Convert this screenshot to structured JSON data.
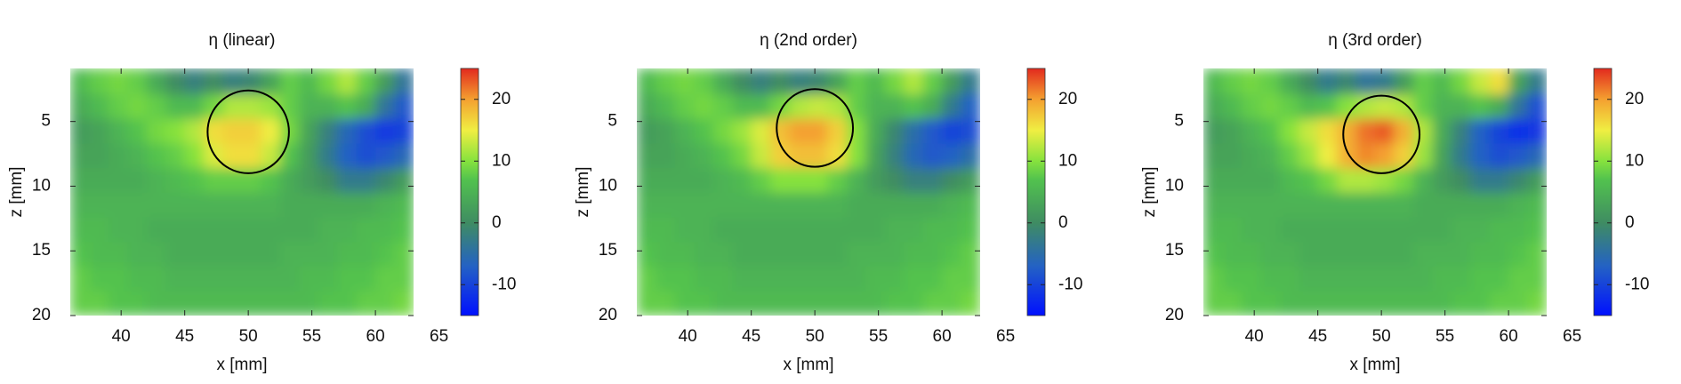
{
  "chart_data": [
    {
      "type": "heatmap",
      "title": "η (linear)",
      "xlabel": "x [mm]",
      "ylabel": "z [mm]",
      "x": [
        36.75,
        38.25,
        39.75,
        41.25,
        42.75,
        44.25,
        45.75,
        47.25,
        48.75,
        50.25,
        51.75,
        53.25,
        54.75,
        56.25,
        57.75,
        59.25,
        60.75,
        62.25
      ],
      "y": [
        1.95,
        3.85,
        5.75,
        7.65,
        9.55,
        11.45,
        13.35,
        15.25,
        17.15,
        19.05
      ],
      "values": [
        [
          6,
          8,
          9,
          8,
          4,
          0,
          -2,
          0,
          -2,
          -1,
          3,
          8,
          6,
          9,
          12,
          8,
          2,
          -4
        ],
        [
          4,
          6,
          8,
          9,
          8,
          6,
          6,
          9,
          12,
          12,
          11,
          8,
          5,
          5,
          7,
          4,
          -4,
          -8
        ],
        [
          2,
          3,
          5,
          7,
          9,
          10,
          12,
          16,
          17,
          17,
          15,
          9,
          3,
          -2,
          -6,
          -9,
          -11,
          -10
        ],
        [
          3,
          3,
          4,
          5,
          7,
          8,
          10,
          14,
          16,
          16,
          13,
          7,
          2,
          -3,
          -7,
          -9,
          -8,
          -6
        ],
        [
          4,
          4,
          4,
          4,
          5,
          6,
          7,
          8,
          8,
          8,
          7,
          4,
          2,
          0,
          -3,
          -3,
          -1,
          2
        ],
        [
          5,
          5,
          5,
          5,
          5,
          5,
          5,
          5,
          5,
          5,
          5,
          4,
          4,
          4,
          4,
          4,
          5,
          6
        ],
        [
          6,
          6,
          5,
          5,
          4,
          4,
          4,
          4,
          4,
          4,
          4,
          4,
          4,
          5,
          5,
          6,
          6,
          7
        ],
        [
          7,
          6,
          6,
          5,
          5,
          4,
          4,
          4,
          4,
          4,
          4,
          5,
          5,
          5,
          6,
          6,
          7,
          8
        ],
        [
          8,
          7,
          7,
          6,
          6,
          5,
          5,
          5,
          5,
          5,
          5,
          5,
          6,
          6,
          7,
          7,
          8,
          8
        ],
        [
          8,
          8,
          7,
          7,
          6,
          6,
          6,
          6,
          6,
          6,
          6,
          6,
          6,
          7,
          7,
          8,
          8,
          9
        ]
      ],
      "xlim": [
        36,
        63
      ],
      "ylim": [
        0.9,
        20
      ],
      "y_inverted": true,
      "xticks": [
        40,
        45,
        50,
        55,
        60,
        65
      ],
      "yticks": [
        5,
        10,
        15,
        20
      ],
      "clim": [
        -15,
        25
      ],
      "cticks": [
        -10,
        0,
        10,
        20
      ],
      "circle": {
        "x": 50,
        "y": 5.8,
        "r": 3.2
      }
    },
    {
      "type": "heatmap",
      "title": "η (2nd order)",
      "xlabel": "x [mm]",
      "ylabel": "z [mm]",
      "x": [
        36.75,
        38.25,
        39.75,
        41.25,
        42.75,
        44.25,
        45.75,
        47.25,
        48.75,
        50.25,
        51.75,
        53.25,
        54.75,
        56.25,
        57.75,
        59.25,
        60.75,
        62.25
      ],
      "y": [
        1.95,
        3.85,
        5.75,
        7.65,
        9.55,
        11.45,
        13.35,
        15.25,
        17.15,
        19.05
      ],
      "values": [
        [
          6,
          8,
          9,
          8,
          4,
          0,
          -2,
          0,
          -2,
          -1,
          3,
          8,
          6,
          9,
          12,
          8,
          2,
          -3
        ],
        [
          4,
          6,
          8,
          9,
          8,
          6,
          6,
          9,
          12,
          13,
          12,
          8,
          5,
          5,
          7,
          4,
          -3,
          -7
        ],
        [
          2,
          3,
          5,
          7,
          9,
          11,
          14,
          18,
          20,
          20,
          17,
          10,
          4,
          -1,
          -5,
          -8,
          -10,
          -9
        ],
        [
          3,
          3,
          4,
          5,
          7,
          9,
          13,
          17,
          18,
          18,
          16,
          10,
          3,
          -2,
          -6,
          -8,
          -7,
          -5
        ],
        [
          4,
          4,
          4,
          4,
          5,
          6,
          8,
          10,
          10,
          10,
          8,
          5,
          2,
          0,
          -2,
          -2,
          0,
          2
        ],
        [
          5,
          5,
          5,
          5,
          5,
          5,
          5,
          5,
          5,
          5,
          5,
          4,
          4,
          4,
          4,
          4,
          5,
          6
        ],
        [
          6,
          6,
          5,
          5,
          4,
          4,
          4,
          4,
          4,
          4,
          4,
          4,
          4,
          5,
          5,
          6,
          6,
          7
        ],
        [
          7,
          6,
          6,
          5,
          5,
          4,
          4,
          4,
          4,
          4,
          4,
          5,
          5,
          5,
          6,
          6,
          7,
          8
        ],
        [
          8,
          7,
          7,
          6,
          6,
          5,
          5,
          5,
          5,
          5,
          5,
          5,
          6,
          6,
          7,
          7,
          8,
          8
        ],
        [
          8,
          8,
          7,
          7,
          6,
          6,
          6,
          6,
          6,
          6,
          6,
          6,
          6,
          7,
          7,
          8,
          8,
          9
        ]
      ],
      "xlim": [
        36,
        63
      ],
      "ylim": [
        0.9,
        20
      ],
      "y_inverted": true,
      "xticks": [
        40,
        45,
        50,
        55,
        60,
        65
      ],
      "yticks": [
        5,
        10,
        15,
        20
      ],
      "clim": [
        -15,
        25
      ],
      "cticks": [
        -10,
        0,
        10,
        20
      ],
      "circle": {
        "x": 50,
        "y": 5.5,
        "r": 3
      }
    },
    {
      "type": "heatmap",
      "title": "η (3rd order)",
      "xlabel": "x [mm]",
      "ylabel": "z [mm]",
      "x": [
        36.75,
        38.25,
        39.75,
        41.25,
        42.75,
        44.25,
        45.75,
        47.25,
        48.75,
        50.25,
        51.75,
        53.25,
        54.75,
        56.25,
        57.75,
        59.25,
        60.75,
        62.25
      ],
      "y": [
        1.95,
        3.85,
        5.75,
        7.65,
        9.55,
        11.45,
        13.35,
        15.25,
        17.15,
        19.05
      ],
      "values": [
        [
          6,
          8,
          9,
          8,
          4,
          0,
          -3,
          -1,
          -4,
          -3,
          2,
          8,
          6,
          9,
          13,
          16,
          3,
          -3
        ],
        [
          4,
          6,
          8,
          9,
          8,
          6,
          7,
          10,
          12,
          13,
          12,
          8,
          5,
          5,
          7,
          4,
          -4,
          -9
        ],
        [
          2,
          3,
          5,
          7,
          10,
          13,
          16,
          19,
          22,
          23,
          19,
          12,
          4,
          -2,
          -7,
          -10,
          -12,
          -11
        ],
        [
          3,
          3,
          4,
          5,
          8,
          11,
          15,
          19,
          21,
          20,
          17,
          11,
          3,
          -3,
          -7,
          -9,
          -8,
          -6
        ],
        [
          4,
          4,
          4,
          4,
          6,
          7,
          9,
          12,
          12,
          11,
          9,
          5,
          2,
          0,
          -3,
          -3,
          -1,
          2
        ],
        [
          5,
          5,
          5,
          5,
          5,
          5,
          5,
          5,
          5,
          5,
          5,
          4,
          4,
          4,
          4,
          4,
          5,
          6
        ],
        [
          6,
          6,
          5,
          5,
          4,
          4,
          4,
          4,
          4,
          4,
          4,
          4,
          4,
          5,
          5,
          6,
          6,
          7
        ],
        [
          7,
          6,
          6,
          5,
          5,
          4,
          4,
          4,
          4,
          4,
          4,
          5,
          5,
          5,
          6,
          6,
          7,
          8
        ],
        [
          8,
          7,
          7,
          6,
          6,
          5,
          5,
          5,
          5,
          5,
          5,
          5,
          6,
          6,
          7,
          7,
          8,
          8
        ],
        [
          8,
          8,
          7,
          7,
          6,
          6,
          6,
          6,
          6,
          6,
          6,
          6,
          6,
          7,
          7,
          8,
          8,
          9
        ]
      ],
      "xlim": [
        36,
        63
      ],
      "ylim": [
        0.9,
        20
      ],
      "y_inverted": true,
      "xticks": [
        40,
        45,
        50,
        55,
        60,
        65
      ],
      "yticks": [
        5,
        10,
        15,
        20
      ],
      "clim": [
        -15,
        25
      ],
      "cticks": [
        -10,
        0,
        10,
        20
      ],
      "circle": {
        "x": 50,
        "y": 6,
        "r": 3
      }
    }
  ],
  "colorscale": [
    {
      "value": -15,
      "color": "#0010ff"
    },
    {
      "value": -7,
      "color": "#2462c4"
    },
    {
      "value": 0,
      "color": "#3f8c62"
    },
    {
      "value": 7,
      "color": "#52c24e"
    },
    {
      "value": 10,
      "color": "#86e23e"
    },
    {
      "value": 15,
      "color": "#f0ee42"
    },
    {
      "value": 20,
      "color": "#f4a030"
    },
    {
      "value": 25,
      "color": "#e22a1e"
    }
  ]
}
